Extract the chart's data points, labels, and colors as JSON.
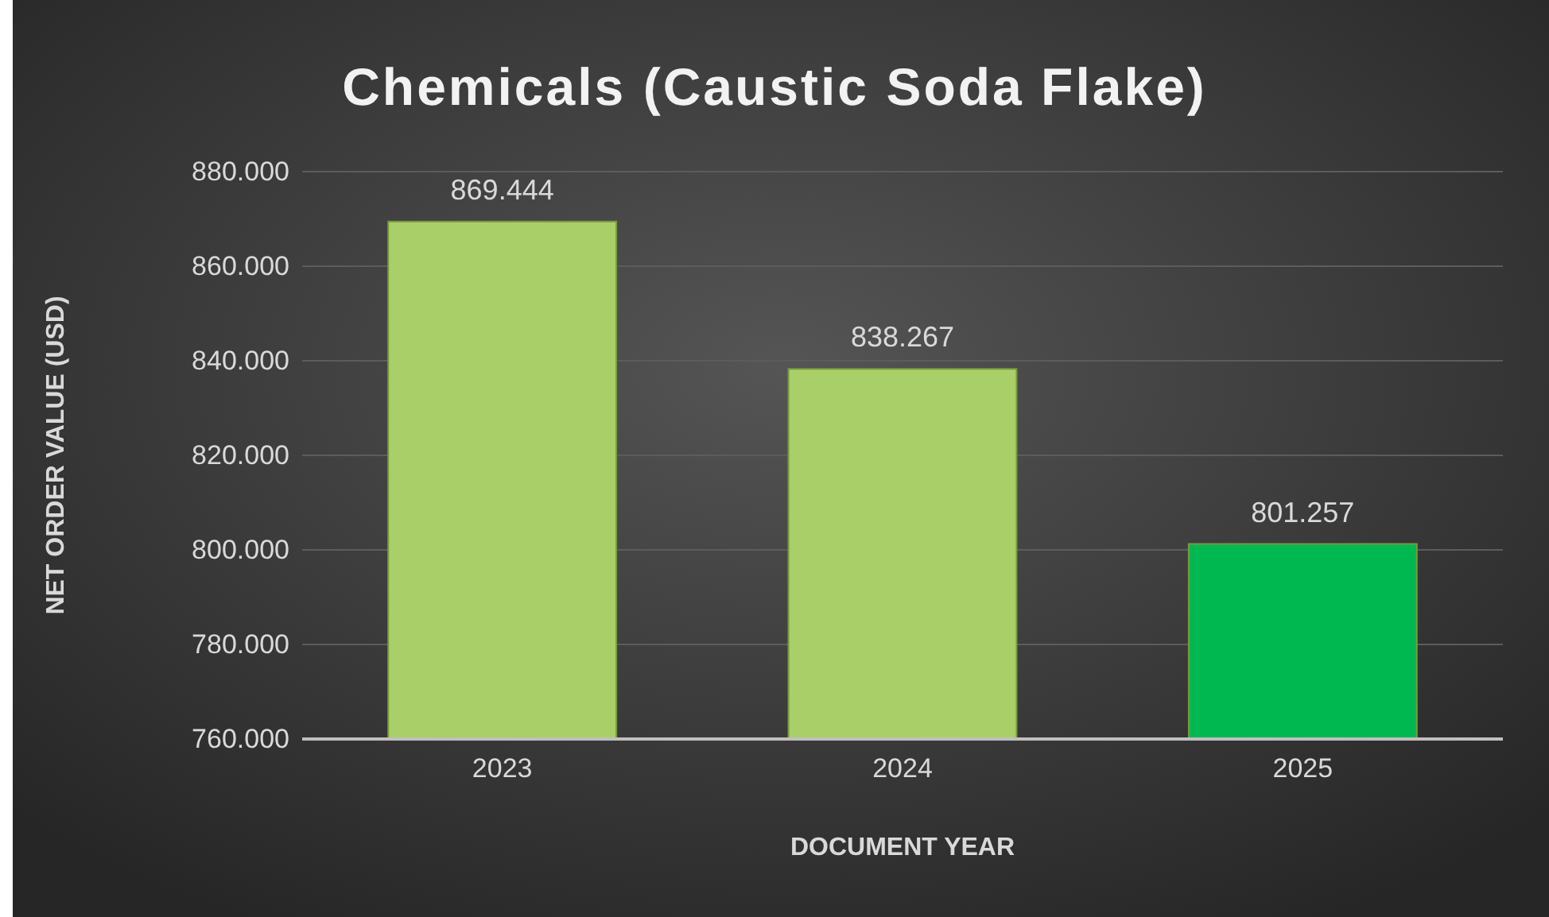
{
  "chart_data": {
    "type": "bar",
    "title": "Chemicals (Caustic Soda Flake)",
    "xlabel": "DOCUMENT YEAR",
    "ylabel": "NET ORDER VALUE (USD)",
    "categories": [
      "2023",
      "2024",
      "2025"
    ],
    "values": [
      869444,
      838267,
      801257
    ],
    "colors": [
      "#a9cf68",
      "#a9cf68",
      "#00b850"
    ],
    "value_labels": [
      "869.444",
      "838.267",
      "801.257"
    ],
    "ylim": [
      760000,
      880000
    ],
    "yticks": [
      {
        "value": 760000,
        "label": "760.000"
      },
      {
        "value": 780000,
        "label": "780.000"
      },
      {
        "value": 800000,
        "label": "800.000"
      },
      {
        "value": 820000,
        "label": "820.000"
      },
      {
        "value": 840000,
        "label": "840.000"
      },
      {
        "value": 860000,
        "label": "860.000"
      },
      {
        "value": 880000,
        "label": "880.000"
      }
    ],
    "grid": "y"
  }
}
